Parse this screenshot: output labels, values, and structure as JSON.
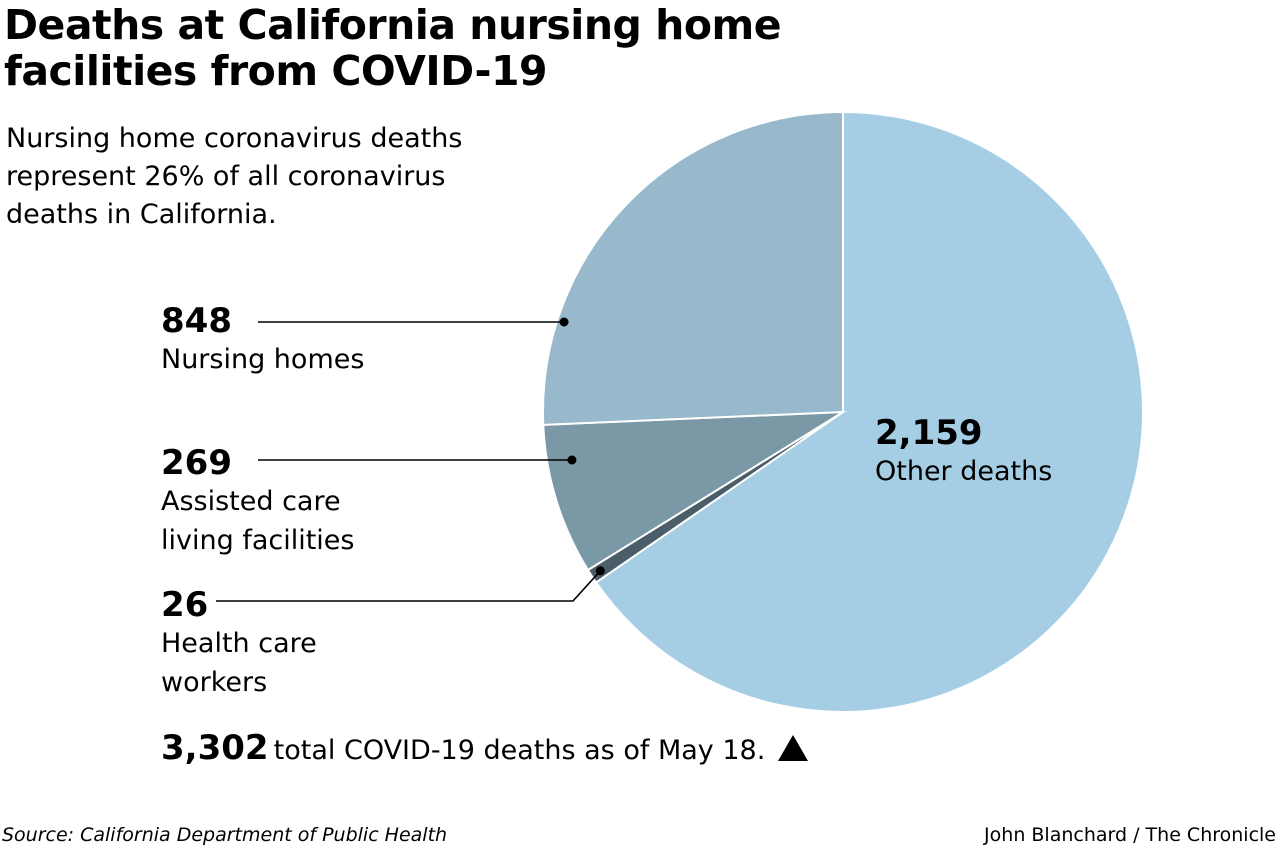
{
  "chart_data": {
    "type": "pie",
    "title": "Deaths at California nursing home facilities from COVID-19",
    "subtitle": "Nursing home coronavirus deaths represent 26% of all coronavirus deaths in California.",
    "slices": [
      {
        "value": "2,159",
        "label": "Other deaths",
        "numeric": 2159,
        "color": "#a5cde3"
      },
      {
        "value": "26",
        "label": "Health care workers",
        "numeric": 26,
        "color": "#4a5d68"
      },
      {
        "value": "269",
        "label": "Assisted care living facilities",
        "numeric": 269,
        "color": "#7b98a7"
      },
      {
        "value": "848",
        "label": "Nursing homes",
        "numeric": 848,
        "color": "#97b9cb"
      }
    ],
    "total": {
      "value": "3,302",
      "text": "total COVID-19 deaths as of May 18."
    },
    "source": "Source: California Department of Public Health",
    "credit": "John Blanchard / The Chronicle"
  }
}
